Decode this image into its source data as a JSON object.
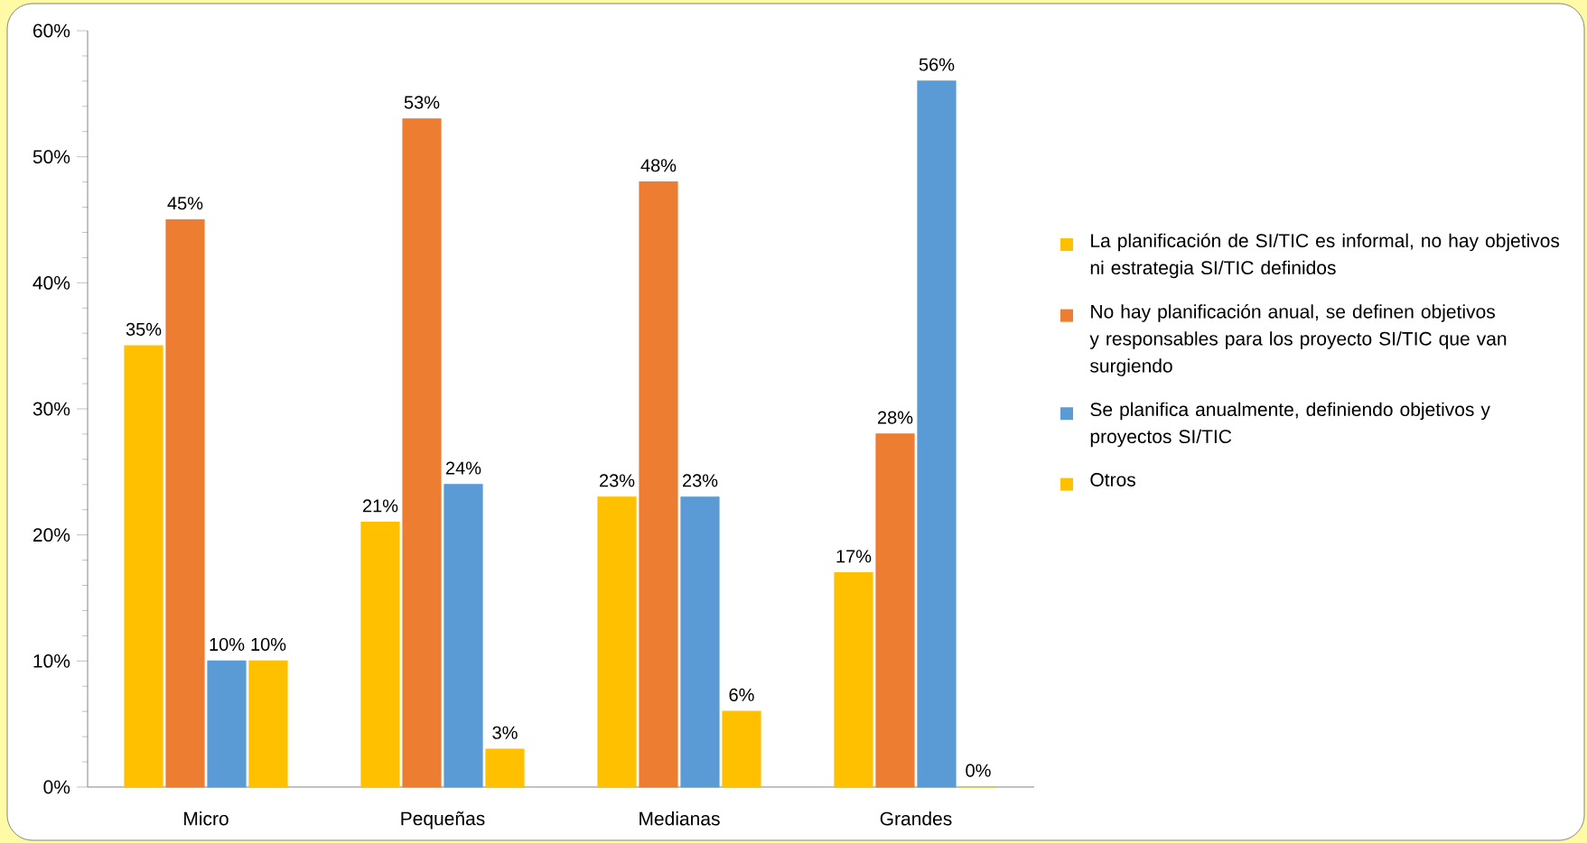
{
  "chart_data": {
    "type": "bar",
    "categories": [
      "Micro",
      "Pequeñas",
      "Medianas",
      "Grandes"
    ],
    "series": [
      {
        "name": "La planificación de SI/TIC es informal, no hay objetivos ni estrategia SI/TIC definidos",
        "color": "#ffc000",
        "values": [
          35,
          21,
          23,
          17
        ],
        "value_labels": [
          "35%",
          "21%",
          "23%",
          "17%"
        ]
      },
      {
        "name": "No hay planificación anual, se definen objetivos y responsables para los proyecto SI/TIC que van surgiendo",
        "color": "#ed7d31",
        "values": [
          45,
          53,
          48,
          28
        ],
        "value_labels": [
          "45%",
          "53%",
          "48%",
          "28%"
        ]
      },
      {
        "name": "Se planifica anualmente, definiendo objetivos y proyectos SI/TIC",
        "color": "#5b9bd5",
        "values": [
          10,
          24,
          23,
          56
        ],
        "value_labels": [
          "10%",
          "24%",
          "23%",
          "56%"
        ]
      },
      {
        "name": "Otros",
        "color": "#ffc000",
        "values": [
          10,
          3,
          6,
          0
        ],
        "value_labels": [
          "10%",
          "3%",
          "6%",
          "0%"
        ]
      }
    ],
    "ylim": [
      0,
      60
    ],
    "yticks": [
      {
        "value": 0,
        "label": "0%"
      },
      {
        "value": 10,
        "label": "10%"
      },
      {
        "value": 20,
        "label": "20%"
      },
      {
        "value": 30,
        "label": "30%"
      },
      {
        "value": 40,
        "label": "40%"
      },
      {
        "value": 50,
        "label": "50%"
      },
      {
        "value": 60,
        "label": "60%"
      }
    ],
    "grid": false,
    "legend": "right"
  }
}
